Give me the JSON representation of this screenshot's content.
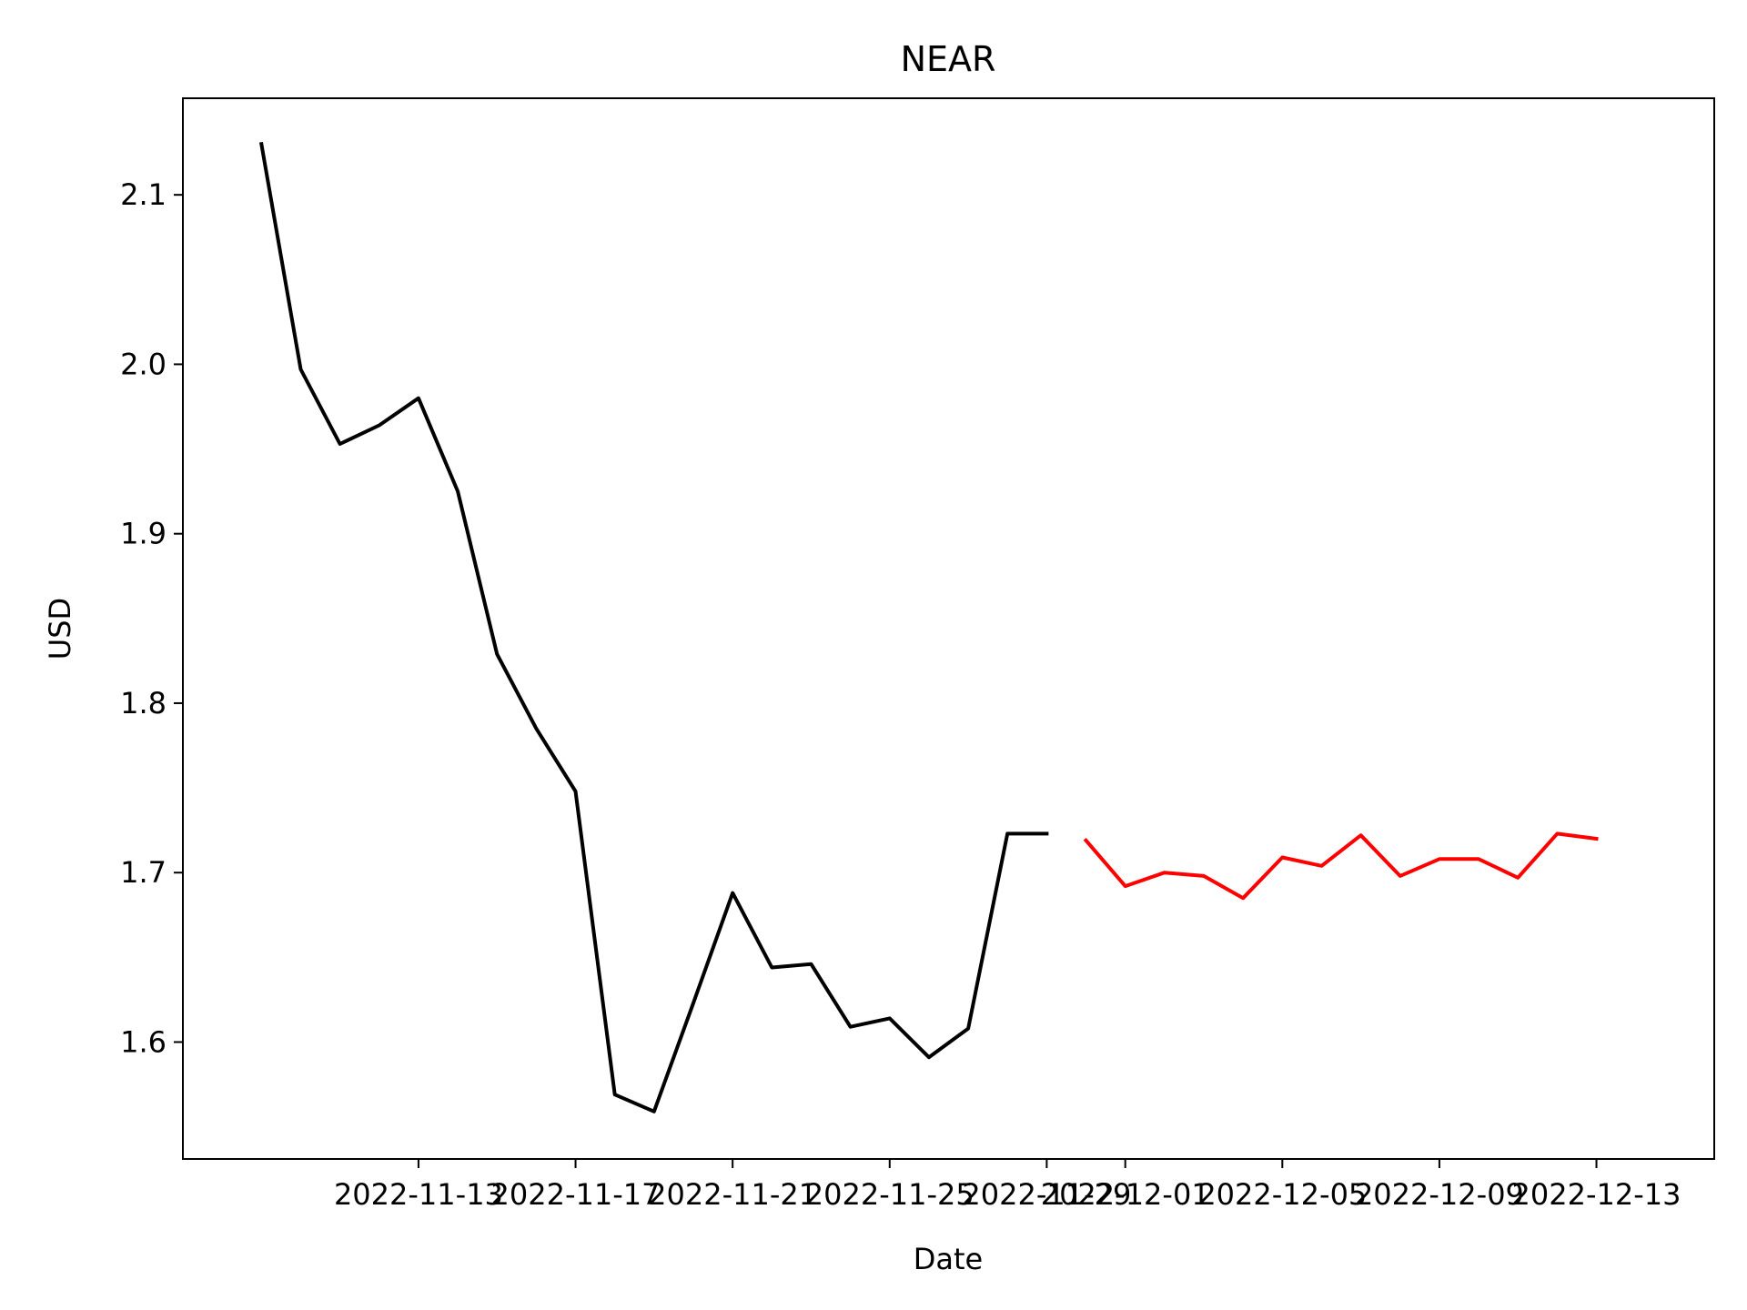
{
  "chart_data": {
    "type": "line",
    "title": "NEAR",
    "xlabel": "Date",
    "ylabel": "USD",
    "xlim": [
      "2022-11-07",
      "2022-12-16"
    ],
    "ylim": [
      1.531,
      2.157
    ],
    "grid": false,
    "legend": "none",
    "x_ticks": [
      "2022-11-13",
      "2022-11-17",
      "2022-11-21",
      "2022-11-25",
      "2022-11-29",
      "2022-12-01",
      "2022-12-05",
      "2022-12-09",
      "2022-12-13"
    ],
    "y_ticks": [
      1.6,
      1.7,
      1.8,
      1.9,
      2.0,
      2.1
    ],
    "series": [
      {
        "color": "#000000",
        "x": [
          "2022-11-09",
          "2022-11-10",
          "2022-11-11",
          "2022-11-12",
          "2022-11-13",
          "2022-11-14",
          "2022-11-15",
          "2022-11-16",
          "2022-11-17",
          "2022-11-18",
          "2022-11-19",
          "2022-11-20",
          "2022-11-21",
          "2022-11-22",
          "2022-11-23",
          "2022-11-24",
          "2022-11-25",
          "2022-11-26",
          "2022-11-27",
          "2022-11-28",
          "2022-11-29"
        ],
        "values": [
          2.13,
          1.997,
          1.953,
          1.964,
          1.98,
          1.925,
          1.829,
          1.785,
          1.748,
          1.569,
          1.559,
          1.623,
          1.688,
          1.644,
          1.646,
          1.609,
          1.614,
          1.591,
          1.608,
          1.723,
          1.723
        ]
      },
      {
        "color": "#ff0000",
        "x": [
          "2022-11-30",
          "2022-12-01",
          "2022-12-02",
          "2022-12-03",
          "2022-12-04",
          "2022-12-05",
          "2022-12-06",
          "2022-12-07",
          "2022-12-08",
          "2022-12-09",
          "2022-12-10",
          "2022-12-11",
          "2022-12-12",
          "2022-12-13"
        ],
        "values": [
          1.719,
          1.692,
          1.7,
          1.698,
          1.685,
          1.709,
          1.704,
          1.722,
          1.698,
          1.708,
          1.708,
          1.697,
          1.723,
          1.72
        ]
      }
    ]
  }
}
